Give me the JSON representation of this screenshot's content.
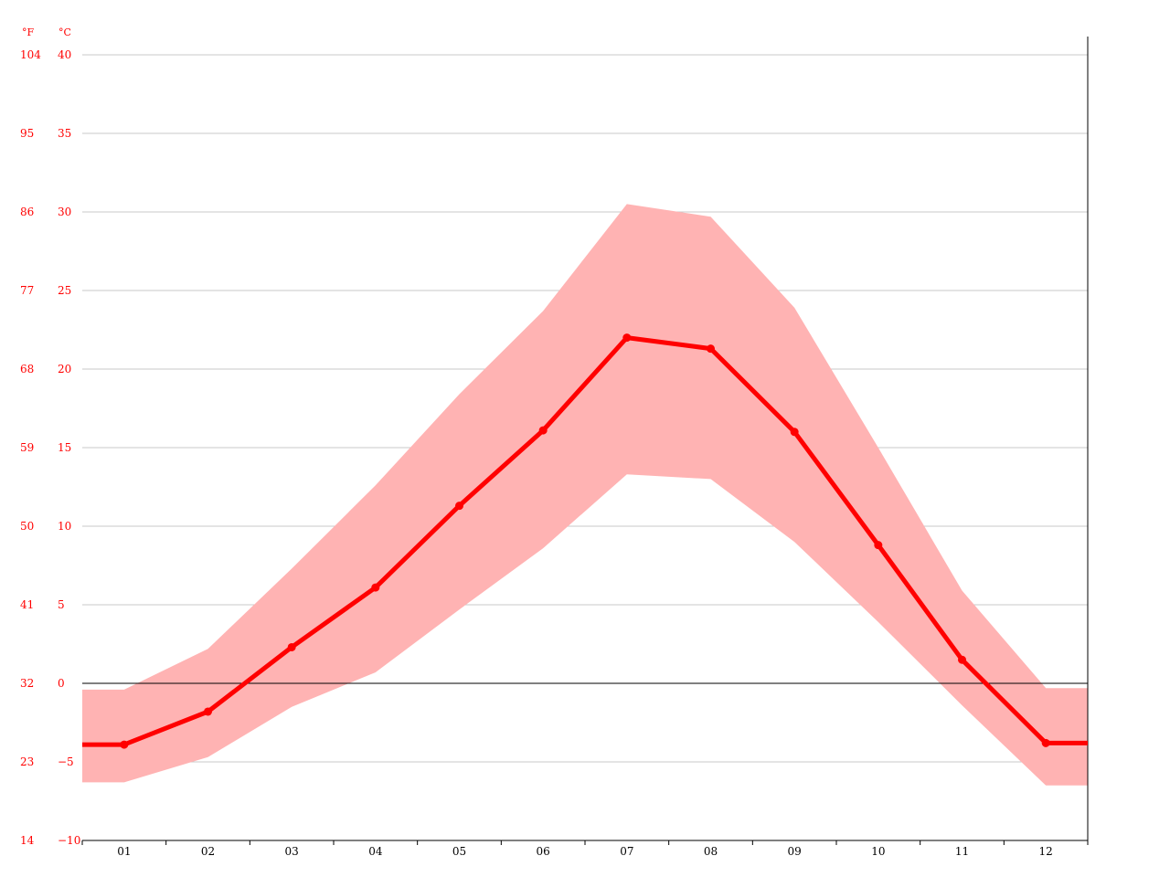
{
  "chart_data": {
    "type": "line",
    "categories": [
      "01",
      "02",
      "03",
      "04",
      "05",
      "06",
      "07",
      "08",
      "09",
      "10",
      "11",
      "12"
    ],
    "series": [
      {
        "values": [
          -3.9,
          -1.8,
          2.3,
          6.1,
          11.3,
          16.1,
          22.0,
          21.3,
          16.0,
          8.8,
          1.5,
          -3.8
        ]
      }
    ],
    "band": {
      "upper": [
        -0.4,
        2.2,
        7.3,
        12.6,
        18.4,
        23.7,
        30.5,
        29.7,
        23.9,
        15.0,
        5.9,
        -0.3
      ],
      "lower": [
        -6.3,
        -4.7,
        -1.5,
        0.7,
        4.7,
        8.6,
        13.3,
        13.0,
        9.0,
        3.9,
        -1.4,
        -6.5
      ]
    },
    "y_left_unit": "°F",
    "y_right_unit": "°C",
    "yticks_c": [
      "40",
      "35",
      "30",
      "25",
      "20",
      "15",
      "10",
      "5",
      "0",
      "−5",
      "−10"
    ],
    "yticks_f": [
      "104",
      "95",
      "86",
      "77",
      "68",
      "59",
      "50",
      "41",
      "32",
      "23",
      "14"
    ],
    "ylim": [
      -10,
      40
    ],
    "grid": true,
    "colors": {
      "line": "#ff0000",
      "band": "#ffb3b3",
      "axis_text": "#ff0000",
      "grid": "#c8c8c8"
    }
  }
}
